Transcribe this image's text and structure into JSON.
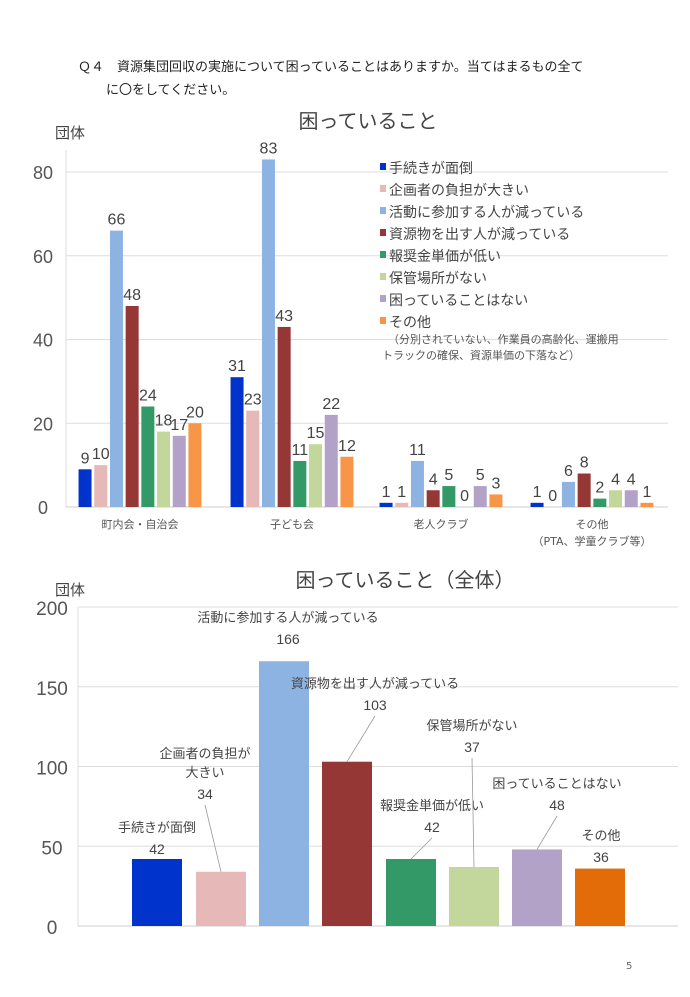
{
  "question": {
    "line1": "Ｑ４　資源集団回収の実施について困っていることはありますか。当てはまるもの全て",
    "line2": "に〇をしてください。"
  },
  "page_number": "5",
  "chart_data": [
    {
      "type": "bar",
      "title": "困っていること",
      "ylabel": "団体",
      "ylim": [
        0,
        85
      ],
      "yticks": [
        0,
        20,
        40,
        60,
        80
      ],
      "grid": true,
      "legend_position": "top-right",
      "categories": [
        "町内会・自治会",
        "子ども会",
        "老人クラブ",
        "その他\n（PTA、学童クラブ等）"
      ],
      "legend_note": [
        "（分別されていない、作業員の高齢化、運搬用",
        "トラックの確保、資源単価の下落など）"
      ],
      "series": [
        {
          "name": "手続きが面倒",
          "color": "#0033cc",
          "values": [
            9,
            31,
            1,
            1
          ]
        },
        {
          "name": "企画者の負担が大きい",
          "color": "#e6b8b7",
          "values": [
            10,
            23,
            1,
            0
          ]
        },
        {
          "name": "活動に参加する人が減っている",
          "color": "#8db3e2",
          "values": [
            66,
            83,
            11,
            6
          ]
        },
        {
          "name": "資源物を出す人が減っている",
          "color": "#953735",
          "values": [
            48,
            43,
            4,
            8
          ]
        },
        {
          "name": "報奨金単価が低い",
          "color": "#339966",
          "values": [
            24,
            11,
            5,
            2
          ]
        },
        {
          "name": "保管場所がない",
          "color": "#c3d69b",
          "values": [
            18,
            15,
            0,
            4
          ]
        },
        {
          "name": "困っていることはない",
          "color": "#b3a2c7",
          "values": [
            17,
            22,
            5,
            4
          ]
        },
        {
          "name": "その他",
          "color": "#f79646",
          "values": [
            20,
            12,
            3,
            1
          ]
        }
      ]
    },
    {
      "type": "bar",
      "title": "困っていること（全体）",
      "ylabel": "団体",
      "ylim": [
        0,
        200
      ],
      "yticks": [
        0,
        50,
        100,
        150,
        200
      ],
      "grid": true,
      "categories": [
        "手続きが面倒",
        "企画者の負担が\n大きい",
        "活動に参加する人が減っている",
        "資源物を出す人が減っている",
        "報奨金単価が低い",
        "保管場所がない",
        "困っていることはない",
        "その他"
      ],
      "values": [
        42,
        34,
        166,
        103,
        42,
        37,
        48,
        36
      ],
      "colors": [
        "#0033cc",
        "#e6b8b7",
        "#8db3e2",
        "#953735",
        "#339966",
        "#c3d69b",
        "#b3a2c7",
        "#e36c09"
      ]
    }
  ]
}
